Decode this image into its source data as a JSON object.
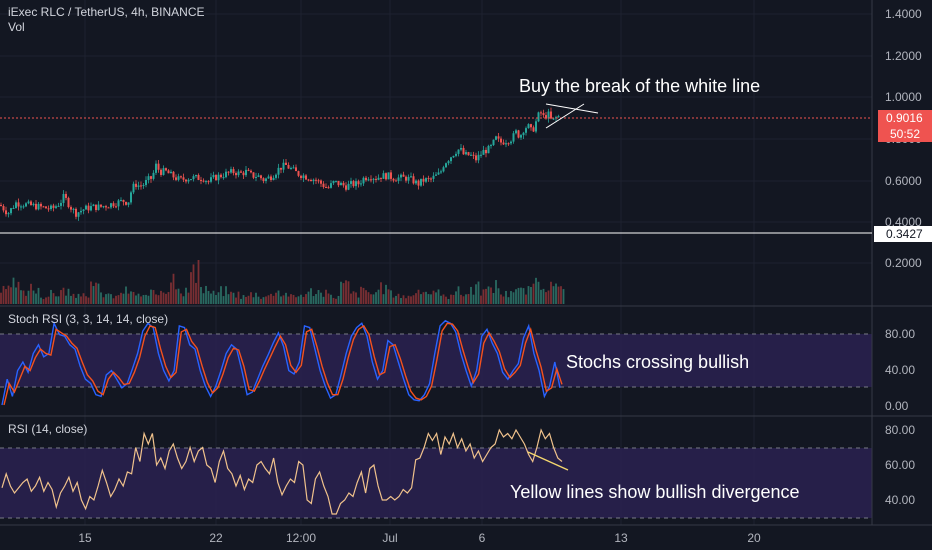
{
  "header": {
    "symbol": "iExec RLC / TetherUS, 4h, BINANCE",
    "vol_label": "Vol"
  },
  "colors": {
    "background": "#131722",
    "grid": "#1e2230",
    "up": "#26a69a",
    "down": "#ef5350",
    "text": "#d1d4dc",
    "axis_text": "#b2b5be",
    "band": "#2a2150",
    "stoch_k": "#2962ff",
    "stoch_d": "#f4511e",
    "rsi": "#f0c28c",
    "price_line": "#ef5350",
    "hline": "#ffffff"
  },
  "price_axis": {
    "ticks": [
      "1.4000",
      "1.2000",
      "1.0000",
      "0.8000",
      "0.6000",
      "0.4000",
      "0.2000"
    ],
    "current_price": "0.9016",
    "countdown": "50:52",
    "hline_price": "0.3427"
  },
  "stoch_axis": {
    "ticks": [
      "80.00",
      "40.00",
      "0.00"
    ]
  },
  "rsi_axis": {
    "ticks": [
      "80.00",
      "60.00",
      "40.00"
    ]
  },
  "time_axis": {
    "ticks": [
      "15",
      "22",
      "12:00",
      "Jul",
      "6",
      "13",
      "20"
    ]
  },
  "annotations": {
    "price": "Buy the break of the white line",
    "stoch": "Stochs crossing bullish",
    "rsi": "Yellow lines show bullish divergence"
  },
  "chart_data": [
    {
      "type": "candlestick",
      "title": "iExec RLC / TetherUS, 4h, BINANCE",
      "ylim": [
        0.15,
        1.48
      ],
      "x_ticks": [
        "15",
        "22",
        "12:00",
        "Jul",
        "6",
        "13",
        "20"
      ],
      "close_path": [
        [
          0,
          0.48
        ],
        [
          8,
          0.44
        ],
        [
          16,
          0.49
        ],
        [
          28,
          0.48
        ],
        [
          40,
          0.47
        ],
        [
          52,
          0.46
        ],
        [
          60,
          0.49
        ],
        [
          64,
          0.52
        ],
        [
          72,
          0.46
        ],
        [
          76,
          0.44
        ],
        [
          84,
          0.46
        ],
        [
          92,
          0.47
        ],
        [
          100,
          0.47
        ],
        [
          108,
          0.48
        ],
        [
          116,
          0.49
        ],
        [
          124,
          0.5
        ],
        [
          128,
          0.49
        ],
        [
          132,
          0.56
        ],
        [
          136,
          0.58
        ],
        [
          140,
          0.57
        ],
        [
          144,
          0.58
        ],
        [
          148,
          0.6
        ],
        [
          152,
          0.61
        ],
        [
          156,
          0.67
        ],
        [
          160,
          0.64
        ],
        [
          166,
          0.64
        ],
        [
          172,
          0.62
        ],
        [
          180,
          0.6
        ],
        [
          188,
          0.61
        ],
        [
          196,
          0.61
        ],
        [
          204,
          0.61
        ],
        [
          208,
          0.59
        ],
        [
          214,
          0.61
        ],
        [
          220,
          0.62
        ],
        [
          226,
          0.63
        ],
        [
          234,
          0.64
        ],
        [
          240,
          0.63
        ],
        [
          246,
          0.64
        ],
        [
          252,
          0.62
        ],
        [
          258,
          0.62
        ],
        [
          264,
          0.6
        ],
        [
          272,
          0.62
        ],
        [
          280,
          0.66
        ],
        [
          286,
          0.67
        ],
        [
          292,
          0.65
        ],
        [
          298,
          0.63
        ],
        [
          304,
          0.62
        ],
        [
          310,
          0.61
        ],
        [
          316,
          0.6
        ],
        [
          322,
          0.58
        ],
        [
          328,
          0.56
        ],
        [
          334,
          0.59
        ],
        [
          340,
          0.58
        ],
        [
          346,
          0.57
        ],
        [
          352,
          0.58
        ],
        [
          358,
          0.58
        ],
        [
          364,
          0.61
        ],
        [
          370,
          0.62
        ],
        [
          376,
          0.61
        ],
        [
          382,
          0.62
        ],
        [
          388,
          0.62
        ],
        [
          394,
          0.61
        ],
        [
          400,
          0.61
        ],
        [
          406,
          0.61
        ],
        [
          412,
          0.6
        ],
        [
          418,
          0.58
        ],
        [
          424,
          0.6
        ],
        [
          430,
          0.6
        ],
        [
          436,
          0.62
        ],
        [
          440,
          0.63
        ],
        [
          444,
          0.68
        ],
        [
          448,
          0.7
        ],
        [
          452,
          0.72
        ],
        [
          456,
          0.74
        ],
        [
          460,
          0.75
        ],
        [
          464,
          0.72
        ],
        [
          470,
          0.72
        ],
        [
          476,
          0.7
        ],
        [
          480,
          0.72
        ],
        [
          484,
          0.74
        ],
        [
          490,
          0.75
        ],
        [
          496,
          0.8
        ],
        [
          500,
          0.78
        ],
        [
          506,
          0.79
        ],
        [
          512,
          0.8
        ],
        [
          516,
          0.83
        ],
        [
          520,
          0.81
        ],
        [
          524,
          0.85
        ],
        [
          528,
          0.86
        ],
        [
          532,
          0.83
        ],
        [
          536,
          0.88
        ],
        [
          540,
          0.93
        ],
        [
          544,
          0.9
        ],
        [
          548,
          0.92
        ],
        [
          552,
          0.88
        ],
        [
          556,
          0.9
        ],
        [
          560,
          0.91
        ]
      ],
      "volume_relative": [
        0.4,
        0.6,
        0.3,
        0.5,
        0.2,
        0.3,
        0.4,
        0.2,
        0.3,
        0.5,
        0.3,
        0.2,
        0.4,
        0.3,
        0.2,
        0.3,
        0.5,
        0.9,
        0.4,
        1.0,
        0.5,
        0.3,
        0.4,
        0.3,
        0.2,
        0.3,
        0.2,
        0.4,
        0.3,
        0.2,
        0.3,
        0.4,
        0.3,
        0.2,
        0.6,
        0.3,
        0.4,
        0.3,
        0.5,
        0.3,
        0.2,
        0.3,
        0.4,
        0.3,
        0.2,
        0.4,
        0.3,
        0.5,
        0.4,
        0.6,
        0.3,
        0.5,
        0.4,
        0.6,
        0.7,
        0.5,
        0.4,
        0.3
      ]
    },
    {
      "type": "line",
      "title": "Stoch RSI (3, 3, 14, 14, close)",
      "ylim": [
        0,
        100
      ],
      "bands": [
        20,
        80
      ],
      "series": [
        {
          "values": [
            0,
            30,
            10,
            40,
            50,
            38,
            60,
            70,
            56,
            60,
            95,
            82,
            80,
            70,
            65,
            45,
            30,
            25,
            12,
            10,
            35,
            40,
            30,
            20,
            25,
            42,
            60,
            86,
            95,
            90,
            60,
            40,
            28,
            40,
            92,
            90,
            70,
            65,
            40,
            22,
            10,
            22,
            40,
            60,
            70,
            65,
            40,
            12,
            15,
            30,
            45,
            58,
            72,
            84,
            68,
            40,
            36,
            50,
            92,
            90,
            65,
            40,
            22,
            8,
            12,
            35,
            60,
            80,
            90,
            95,
            80,
            50,
            30,
            40,
            75,
            70,
            50,
            30,
            12,
            6,
            5,
            12,
            25,
            60,
            92,
            98,
            95,
            85,
            60,
            40,
            22,
            40,
            80,
            88,
            72,
            60,
            38,
            30,
            40,
            48,
            78,
            92,
            60,
            40,
            10,
            22,
            50,
            20
          ]
        },
        {
          "values": [
            0,
            25,
            15,
            30,
            45,
            40,
            55,
            65,
            60,
            58,
            88,
            84,
            80,
            72,
            66,
            50,
            35,
            28,
            16,
            12,
            30,
            38,
            32,
            24,
            25,
            38,
            55,
            80,
            92,
            90,
            66,
            45,
            32,
            38,
            85,
            88,
            74,
            66,
            45,
            26,
            14,
            20,
            36,
            55,
            66,
            64,
            45,
            18,
            16,
            28,
            42,
            55,
            68,
            80,
            70,
            46,
            38,
            46,
            85,
            88,
            68,
            45,
            26,
            12,
            12,
            30,
            55,
            76,
            88,
            92,
            82,
            56,
            35,
            38,
            68,
            70,
            54,
            34,
            16,
            8,
            6,
            10,
            22,
            52,
            86,
            95,
            94,
            86,
            64,
            44,
            26,
            36,
            72,
            84,
            74,
            62,
            42,
            32,
            38,
            46,
            72,
            88,
            64,
            44,
            16,
            20,
            42,
            24
          ]
        }
      ]
    },
    {
      "type": "line",
      "title": "RSI (14, close)",
      "ylim": [
        25,
        88
      ],
      "bands": [
        30,
        70
      ],
      "series": [
        {
          "values": [
            47,
            55,
            48,
            44,
            47,
            50,
            52,
            45,
            48,
            53,
            45,
            50,
            46,
            36,
            44,
            48,
            53,
            45,
            50,
            40,
            35,
            42,
            40,
            48,
            57,
            50,
            42,
            46,
            52,
            48,
            56,
            55,
            70,
            62,
            78,
            72,
            78,
            60,
            64,
            58,
            68,
            72,
            64,
            58,
            62,
            70,
            62,
            68,
            70,
            60,
            58,
            50,
            62,
            68,
            58,
            55,
            48,
            54,
            46,
            52,
            50,
            60,
            62,
            58,
            55,
            64,
            50,
            43,
            48,
            52,
            50,
            62,
            60,
            40,
            38,
            52,
            56,
            48,
            42,
            32,
            32,
            38,
            40,
            44,
            42,
            50,
            56,
            44,
            58,
            60,
            48,
            40,
            40,
            42,
            40,
            42,
            46,
            44,
            47,
            63,
            64,
            70,
            78,
            74,
            78,
            66,
            76,
            72,
            78,
            70,
            75,
            68,
            72,
            64,
            68,
            62,
            66,
            70,
            72,
            80,
            76,
            78,
            75,
            80,
            76,
            72,
            66,
            62,
            70,
            80,
            75,
            78,
            70,
            64,
            62
          ]
        }
      ]
    }
  ]
}
